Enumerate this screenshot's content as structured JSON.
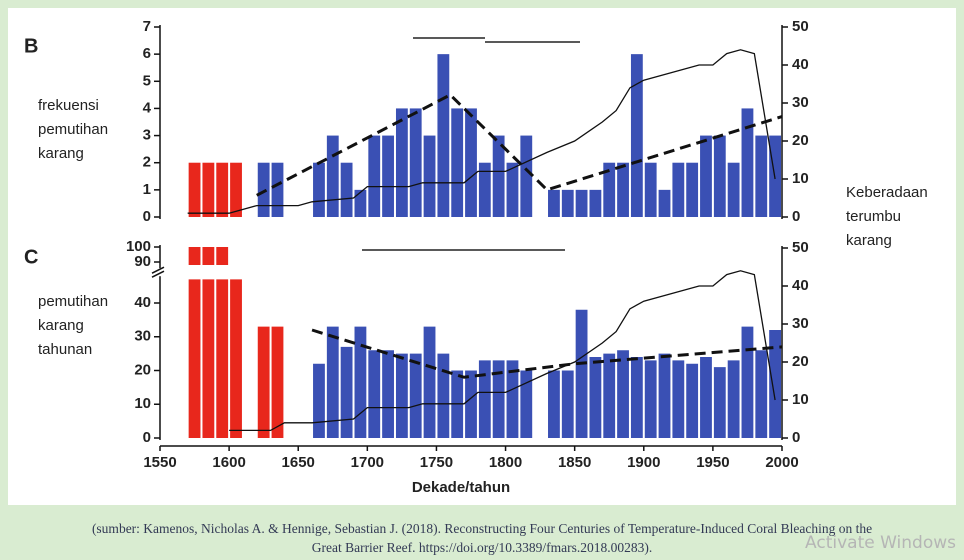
{
  "chart_data": [
    {
      "type": "bar",
      "title": "B",
      "ylabel": [
        "frekuensi",
        "pemutihan",
        "karang"
      ],
      "y2label": [
        "Keberadaan",
        "terumbu",
        "karang"
      ],
      "xlim": [
        1550,
        2000
      ],
      "ylim": [
        0,
        7
      ],
      "yticks": [
        0,
        1,
        2,
        3,
        4,
        5,
        6,
        7
      ],
      "y2lim": [
        0,
        50
      ],
      "y2ticks": [
        0,
        10,
        20,
        30,
        40,
        50
      ],
      "series": [
        {
          "type": "bar",
          "color": "#e8271c",
          "x": [
            1570,
            1580,
            1590,
            1600
          ],
          "values": [
            2,
            2,
            2,
            2
          ]
        },
        {
          "type": "bar",
          "color": "#3a50b4",
          "x": [
            1620,
            1630,
            1660,
            1670,
            1680,
            1690,
            1700,
            1710,
            1720,
            1730,
            1740,
            1750,
            1760,
            1770,
            1780,
            1790,
            1800,
            1810,
            1830,
            1840,
            1850,
            1860,
            1870,
            1880,
            1890,
            1900,
            1910,
            1920,
            1930,
            1940,
            1950,
            1960,
            1970,
            1980,
            1990
          ],
          "values": [
            2,
            2,
            2,
            3,
            2,
            1,
            3,
            3,
            4,
            4,
            3,
            6,
            4,
            4,
            2,
            3,
            2,
            3,
            1,
            1,
            1,
            1,
            2,
            2,
            6,
            2,
            1,
            2,
            2,
            3,
            3,
            2,
            4,
            3,
            3
          ]
        },
        {
          "type": "line",
          "axis": "y2",
          "color": "#111111",
          "x": [
            1570,
            1600,
            1620,
            1650,
            1660,
            1690,
            1700,
            1730,
            1740,
            1770,
            1780,
            1800,
            1830,
            1850,
            1870,
            1880,
            1890,
            1900,
            1920,
            1940,
            1950,
            1960,
            1970,
            1980,
            1995
          ],
          "values": [
            1,
            1,
            3,
            3,
            4,
            5,
            8,
            8,
            9,
            9,
            12,
            12,
            17,
            20,
            25,
            28,
            34,
            36,
            38,
            40,
            40,
            43,
            44,
            43,
            10
          ]
        },
        {
          "type": "line",
          "dashed": true,
          "color": "#111111",
          "x": [
            1620,
            1760,
            1830,
            2000
          ],
          "values": [
            0.8,
            4.5,
            1,
            3.7
          ]
        }
      ]
    },
    {
      "type": "bar",
      "title": "C",
      "ylabel": [
        "pemutihan",
        "karang",
        "tahunan"
      ],
      "xlabel": "Dekade/tahun",
      "xlim": [
        1550,
        2000
      ],
      "xticks": [
        1550,
        1600,
        1650,
        1700,
        1750,
        1800,
        1850,
        1900,
        1950,
        2000
      ],
      "ylim": [
        0,
        100
      ],
      "ybreak": [
        47,
        88
      ],
      "yticks": [
        0,
        10,
        20,
        30,
        40,
        90,
        100
      ],
      "y2lim": [
        0,
        50
      ],
      "y2ticks": [
        0,
        10,
        20,
        30,
        40,
        50
      ],
      "series": [
        {
          "type": "bar",
          "color": "#e8271c",
          "x": [
            1570,
            1580,
            1590,
            1600,
            1620,
            1630
          ],
          "values": [
            100,
            100,
            100,
            47,
            33,
            33
          ]
        },
        {
          "type": "bar",
          "color": "#3a50b4",
          "x": [
            1660,
            1670,
            1680,
            1690,
            1700,
            1710,
            1720,
            1730,
            1740,
            1750,
            1760,
            1770,
            1780,
            1790,
            1800,
            1810,
            1830,
            1840,
            1850,
            1860,
            1870,
            1880,
            1890,
            1900,
            1910,
            1920,
            1930,
            1940,
            1950,
            1960,
            1970,
            1980,
            1990
          ],
          "values": [
            22,
            33,
            27,
            33,
            26,
            26,
            25,
            25,
            33,
            25,
            20,
            20,
            23,
            23,
            23,
            20,
            20,
            20,
            38,
            24,
            25,
            26,
            24,
            23,
            25,
            23,
            22,
            24,
            21,
            23,
            33,
            26,
            32
          ]
        },
        {
          "type": "line",
          "axis": "y2",
          "color": "#111111",
          "x": [
            1600,
            1630,
            1640,
            1660,
            1690,
            1700,
            1730,
            1740,
            1770,
            1780,
            1800,
            1830,
            1850,
            1870,
            1880,
            1890,
            1900,
            1920,
            1940,
            1950,
            1960,
            1970,
            1980,
            1995
          ],
          "values": [
            2,
            2,
            4,
            4,
            5,
            8,
            8,
            9,
            9,
            12,
            12,
            17,
            20,
            25,
            28,
            34,
            36,
            38,
            40,
            40,
            43,
            44,
            43,
            10
          ]
        },
        {
          "type": "line",
          "dashed": true,
          "color": "#111111",
          "x": [
            1660,
            1770,
            1850,
            2000
          ],
          "values": [
            32,
            18,
            22,
            27
          ]
        }
      ]
    }
  ],
  "caption": [
    "(sumber: Kamenos, Nicholas A. & Hennige, Sebastian J. (2018). Reconstructing Four Centuries of Temperature-Induced Coral Bleaching on the",
    "Great Barrier Reef. https://doi.org/10.3389/fmars.2018.00283)."
  ],
  "watermark": "Activate Windows"
}
